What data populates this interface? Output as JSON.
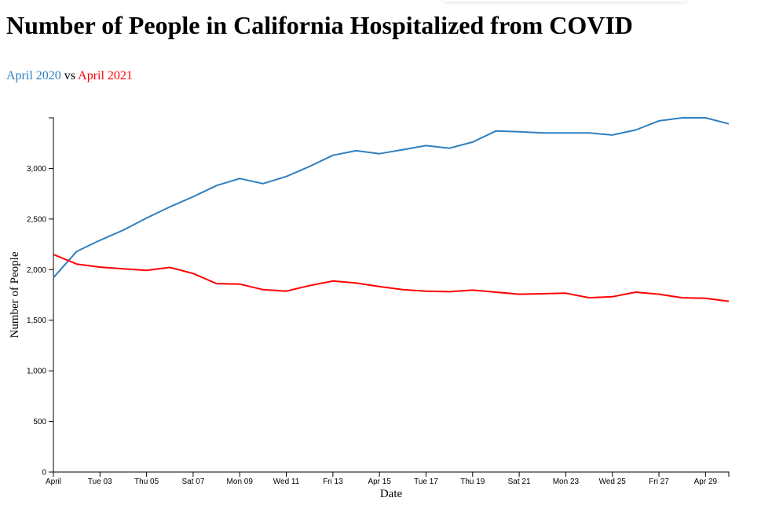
{
  "title": "Number of People in California Hospitalized from COVID",
  "subtitle": {
    "a": "April 2020",
    "vs": "vs",
    "b": "April 2021"
  },
  "colors": {
    "series_2020": "#2f7fbf",
    "series_2021": "#ff0000"
  },
  "chart_data": {
    "type": "line",
    "xlabel": "Date",
    "ylabel": "Number of People",
    "x_tick_labels": [
      "April",
      "Tue 03",
      "Thu 05",
      "Sat 07",
      "Mon 09",
      "Wed 11",
      "Fri 13",
      "Apr 15",
      "Tue 17",
      "Thu 19",
      "Sat 21",
      "Mon 23",
      "Wed 25",
      "Fri 27",
      "Apr 29"
    ],
    "y_tick_labels": [
      "0",
      "500",
      "1,000",
      "1,500",
      "2,000",
      "2,500",
      "3,000"
    ],
    "ylim": [
      0,
      3500
    ],
    "x_days": [
      1,
      30
    ],
    "grid": false,
    "series": [
      {
        "name": "April 2020",
        "color": "#2f7fbf",
        "x": [
          1,
          2,
          3,
          4,
          5,
          6,
          7,
          8,
          9,
          10,
          11,
          12,
          13,
          14,
          15,
          16,
          17,
          18,
          19,
          20,
          21,
          22,
          23,
          24,
          25,
          26,
          27,
          28,
          29,
          30
        ],
        "values": [
          1920,
          2180,
          2290,
          2390,
          2510,
          2620,
          2720,
          2830,
          2900,
          2850,
          2920,
          3020,
          3130,
          3175,
          3145,
          3185,
          3225,
          3200,
          3260,
          3370,
          3362,
          3350,
          3350,
          3350,
          3330,
          3380,
          3470,
          3500,
          3500,
          3440
        ]
      },
      {
        "name": "April 2021",
        "color": "#ff0000",
        "x": [
          1,
          2,
          3,
          4,
          5,
          6,
          7,
          8,
          9,
          10,
          11,
          12,
          13,
          14,
          15,
          16,
          17,
          18,
          19,
          20,
          21,
          22,
          23,
          24,
          25,
          26,
          27,
          28,
          29,
          30
        ],
        "values": [
          2150,
          2055,
          2025,
          2008,
          1992,
          2022,
          1962,
          1862,
          1857,
          1802,
          1787,
          1842,
          1887,
          1867,
          1832,
          1802,
          1787,
          1782,
          1797,
          1777,
          1757,
          1762,
          1767,
          1722,
          1732,
          1777,
          1757,
          1722,
          1717,
          1687
        ]
      }
    ]
  }
}
